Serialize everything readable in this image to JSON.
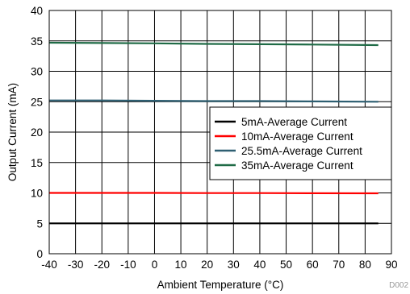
{
  "chart_data": {
    "type": "line",
    "xlabel": "Ambient Temperature (°C)",
    "ylabel": "Output Current (mA)",
    "xlim": [
      -40,
      90
    ],
    "ylim": [
      0,
      40
    ],
    "x_ticks": [
      -40,
      -30,
      -20,
      -10,
      0,
      10,
      20,
      30,
      40,
      50,
      60,
      70,
      80,
      90
    ],
    "y_ticks": [
      0,
      5,
      10,
      15,
      20,
      25,
      30,
      35,
      40
    ],
    "grid": true,
    "legend_position": "right",
    "figure_id": "D002",
    "series": [
      {
        "name": "5mA-Average Current",
        "color": "#000000",
        "x": [
          -40,
          -20,
          0,
          20,
          40,
          60,
          85
        ],
        "y": [
          5.0,
          5.0,
          5.0,
          5.0,
          5.0,
          5.0,
          5.0
        ]
      },
      {
        "name": "10mA-Average Current",
        "color": "#ff0000",
        "x": [
          -40,
          -20,
          0,
          20,
          40,
          60,
          85
        ],
        "y": [
          10.0,
          10.0,
          10.0,
          9.98,
          9.97,
          9.95,
          9.93
        ]
      },
      {
        "name": "25.5mA-Average Current",
        "color": "#2e5f72",
        "x": [
          -40,
          -20,
          0,
          20,
          40,
          60,
          85
        ],
        "y": [
          25.2,
          25.2,
          25.15,
          25.1,
          25.1,
          25.05,
          25.0
        ]
      },
      {
        "name": "35mA-Average Current",
        "color": "#1f6b46",
        "x": [
          -40,
          -20,
          0,
          20,
          40,
          60,
          85
        ],
        "y": [
          34.7,
          34.65,
          34.6,
          34.5,
          34.45,
          34.4,
          34.3
        ]
      }
    ]
  }
}
